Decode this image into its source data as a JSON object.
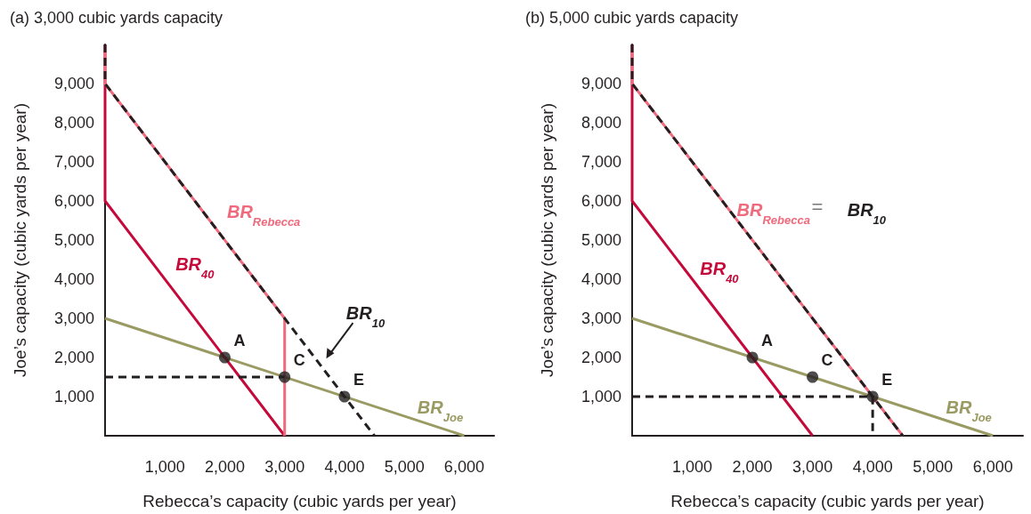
{
  "chart_data": [
    {
      "type": "line",
      "title": "(a) 3,000 cubic yards capacity",
      "xlabel": "Rebecca’s capacity (cubic yards per year)",
      "ylabel": "Joe’s capacity (cubic yards per year)",
      "xlim": [
        0,
        6500
      ],
      "ylim": [
        0,
        10000
      ],
      "xticks": [
        {
          "value": 1000,
          "label": "1,000"
        },
        {
          "value": 2000,
          "label": "2,000"
        },
        {
          "value": 3000,
          "label": "3,000"
        },
        {
          "value": 4000,
          "label": "4,000"
        },
        {
          "value": 5000,
          "label": "5,000"
        },
        {
          "value": 6000,
          "label": "6,000"
        }
      ],
      "yticks": [
        {
          "value": 1000,
          "label": "1,000"
        },
        {
          "value": 2000,
          "label": "2,000"
        },
        {
          "value": 3000,
          "label": "3,000"
        },
        {
          "value": 4000,
          "label": "4,000"
        },
        {
          "value": 5000,
          "label": "5,000"
        },
        {
          "value": 6000,
          "label": "6,000"
        },
        {
          "value": 7000,
          "label": "7,000"
        },
        {
          "value": 8000,
          "label": "8,000"
        },
        {
          "value": 9000,
          "label": "9,000"
        }
      ],
      "grid": false,
      "marker": "none",
      "series": [
        {
          "name": "BR$_{Joe}$",
          "color": "#9a9a63",
          "x": [
            0,
            6000
          ],
          "values": [
            3000,
            0
          ]
        },
        {
          "name": "BR$_{40}$",
          "color": "#c5093b",
          "x": [
            0,
            0,
            3000
          ],
          "values": [
            10000,
            6000,
            0
          ]
        },
        {
          "name": "BR$_{Rebecca}$",
          "color": "#ee6a7c",
          "x": [
            0,
            0,
            3000,
            3000
          ],
          "values": [
            10000,
            9000,
            3000,
            0
          ]
        },
        {
          "name": "BR$_{10}$",
          "color": "#231f20",
          "line_style": "dashed",
          "x": [
            0,
            0,
            4500
          ],
          "values": [
            10000,
            9000,
            0
          ]
        },
        {
          "color": "#231f20",
          "line_style": "dashed",
          "x": [
            0,
            3000
          ],
          "values": [
            1500,
            1500
          ]
        },
        {
          "type": "scatter",
          "marker": "circle",
          "color": "#231f20",
          "x": [
            2000,
            3000,
            4000
          ],
          "values": [
            2000,
            1500,
            1000
          ]
        }
      ],
      "annotations": [
        {
          "text": "A",
          "x": 2000,
          "y": 2000
        },
        {
          "text": "C",
          "x": 3000,
          "y": 1500
        },
        {
          "text": "E",
          "x": 4000,
          "y": 1000
        }
      ]
    },
    {
      "type": "line",
      "title": "(b) 5,000 cubic yards capacity",
      "xlabel": "Rebecca’s capacity (cubic yards per year)",
      "ylabel": "Joe’s capacity (cubic yards per year)",
      "xlim": [
        0,
        6500
      ],
      "ylim": [
        0,
        10000
      ],
      "xticks": [
        {
          "value": 1000,
          "label": "1,000"
        },
        {
          "value": 2000,
          "label": "2,000"
        },
        {
          "value": 3000,
          "label": "3,000"
        },
        {
          "value": 4000,
          "label": "4,000"
        },
        {
          "value": 5000,
          "label": "5,000"
        },
        {
          "value": 6000,
          "label": "6,000"
        }
      ],
      "yticks": [
        {
          "value": 1000,
          "label": "1,000"
        },
        {
          "value": 2000,
          "label": "2,000"
        },
        {
          "value": 3000,
          "label": "3,000"
        },
        {
          "value": 4000,
          "label": "4,000"
        },
        {
          "value": 5000,
          "label": "5,000"
        },
        {
          "value": 6000,
          "label": "6,000"
        },
        {
          "value": 7000,
          "label": "7,000"
        },
        {
          "value": 8000,
          "label": "8,000"
        },
        {
          "value": 9000,
          "label": "9,000"
        }
      ],
      "grid": false,
      "marker": "none",
      "series": [
        {
          "name": "BR$_{Joe}$",
          "color": "#9a9a63",
          "x": [
            0,
            6000
          ],
          "values": [
            3000,
            0
          ]
        },
        {
          "name": "BR$_{40}$",
          "color": "#c5093b",
          "x": [
            0,
            0,
            3000
          ],
          "values": [
            10000,
            6000,
            0
          ]
        },
        {
          "name": "BR$_{Rebecca}$",
          "color": "#ee6a7c",
          "x": [
            0,
            0,
            4500
          ],
          "values": [
            10000,
            9000,
            0
          ]
        },
        {
          "name": "BR$_{10}$",
          "color": "#231f20",
          "line_style": "dashed",
          "x": [
            0,
            0,
            4500
          ],
          "values": [
            10000,
            9000,
            0
          ]
        },
        {
          "color": "#231f20",
          "line_style": "dashed",
          "x": [
            0,
            4000,
            4000
          ],
          "values": [
            1000,
            1000,
            0
          ]
        },
        {
          "type": "scatter",
          "marker": "circle",
          "color": "#231f20",
          "x": [
            2000,
            3000,
            4000
          ],
          "values": [
            2000,
            1500,
            1000
          ]
        }
      ],
      "annotations": [
        "=",
        {
          "text": "A",
          "x": 2000,
          "y": 2000
        },
        {
          "text": "C",
          "x": 3000,
          "y": 1500
        },
        {
          "text": "E",
          "x": 4000,
          "y": 1000
        }
      ]
    }
  ]
}
